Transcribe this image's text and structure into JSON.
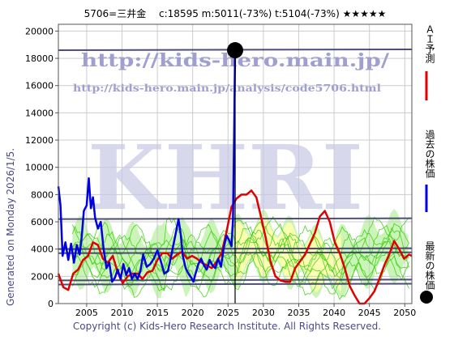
{
  "header": {
    "title": "5706=三井金　 c:18595  m:5011(-73%)  t:5104(-73%)  ★★★★★"
  },
  "sidenote": "Generated on Monday 2026/1/5.",
  "footer": "Copyright (c) Kids-Hero Research Institute. All Rights Reserved.",
  "watermark": {
    "url1": "http://kids-hero.main.jp/",
    "url2": "http://kids-hero.main.jp/analysis/code5706.html",
    "big": "KHRI"
  },
  "legend": [
    {
      "label": "ＡＩ予測",
      "color": "#e00000"
    },
    {
      "label": "過去の株価",
      "color": "#0000e0"
    },
    {
      "label": "最新の株価",
      "color": "#000000"
    }
  ],
  "colors": {
    "ai": "#e00000",
    "past": "#0000e0",
    "bands": "#33cc00",
    "band_fill_green": "#b8f0a0",
    "band_fill_yellow": "#ffffb0",
    "hlines": "#3a3a6a"
  },
  "chart_data": {
    "type": "line",
    "xlim": [
      2001,
      2051
    ],
    "ylim": [
      0,
      20500
    ],
    "x_ticks": [
      2005,
      2010,
      2015,
      2020,
      2025,
      2030,
      2035,
      2040,
      2045,
      2050
    ],
    "y_ticks": [
      0,
      2000,
      4000,
      6000,
      8000,
      10000,
      12000,
      14000,
      16000,
      18000,
      20000
    ],
    "latest": {
      "x": 2026.0,
      "y": 18595
    },
    "horizontal_levels": [
      18600,
      6200,
      4000,
      3700,
      1700,
      1400
    ],
    "series": [
      {
        "role": "past",
        "x": [
          2001.0,
          2001.3,
          2001.6,
          2002.0,
          2002.4,
          2002.8,
          2003.2,
          2003.6,
          2004.0,
          2004.3,
          2004.6,
          2005.0,
          2005.3,
          2005.6,
          2005.9,
          2006.2,
          2006.6,
          2007.0,
          2007.4,
          2007.8,
          2008.2,
          2008.6,
          2009.0,
          2009.4,
          2009.8,
          2010.2,
          2010.6,
          2011.0,
          2011.4,
          2011.8,
          2012.2,
          2012.6,
          2013.0,
          2013.5,
          2014.0,
          2014.5,
          2015.0,
          2015.5,
          2016.0,
          2016.5,
          2017.0,
          2017.5,
          2018.0,
          2018.3,
          2018.6,
          2019.0,
          2019.4,
          2019.8,
          2020.1,
          2020.4,
          2020.8,
          2021.2,
          2021.6,
          2022.0,
          2022.4,
          2022.8,
          2023.2,
          2023.6,
          2024.0,
          2024.4,
          2024.8,
          2025.2,
          2025.5,
          2025.7,
          2025.85,
          2026.0
        ],
        "y": [
          8600,
          7200,
          3500,
          4500,
          3200,
          4400,
          3000,
          4300,
          3600,
          4900,
          6800,
          7200,
          9200,
          7000,
          7800,
          6300,
          5500,
          6000,
          4000,
          2600,
          3000,
          1600,
          1900,
          2500,
          1800,
          2900,
          2100,
          2600,
          1800,
          2200,
          1800,
          2400,
          3600,
          2700,
          2900,
          3300,
          3900,
          3100,
          2200,
          2400,
          3600,
          4900,
          6200,
          5100,
          3500,
          2600,
          2200,
          1900,
          1600,
          2200,
          2900,
          3300,
          2800,
          2500,
          3200,
          2800,
          2600,
          3300,
          2700,
          4100,
          5000,
          4600,
          4200,
          6200,
          12000,
          18595
        ]
      },
      {
        "role": "ai",
        "x": [
          2001.0,
          2001.7,
          2002.4,
          2003.1,
          2003.8,
          2004.5,
          2005.2,
          2005.9,
          2006.6,
          2007.3,
          2008.0,
          2008.7,
          2009.4,
          2010.1,
          2010.8,
          2011.5,
          2012.2,
          2012.9,
          2013.6,
          2014.3,
          2015.0,
          2015.7,
          2016.4,
          2017.1,
          2017.8,
          2018.5,
          2019.2,
          2019.9,
          2020.6,
          2021.3,
          2022.0,
          2022.7,
          2023.4,
          2024.1,
          2024.8,
          2025.5,
          2026.2,
          2026.9,
          2027.6,
          2028.3,
          2029.0,
          2029.6,
          2030.3,
          2031.0,
          2031.7,
          2032.4,
          2033.1,
          2033.8,
          2034.5,
          2035.2,
          2035.9,
          2036.6,
          2037.3,
          2038.0,
          2038.7,
          2039.4,
          2040.1,
          2040.8,
          2041.5,
          2042.2,
          2042.9,
          2043.6,
          2044.3,
          2045.0,
          2045.7,
          2046.4,
          2047.1,
          2047.8,
          2048.5,
          2049.2,
          2049.9,
          2050.6,
          2051.0
        ],
        "y": [
          2200,
          1200,
          1000,
          2200,
          2500,
          3200,
          3500,
          4500,
          4300,
          3300,
          3000,
          3500,
          2300,
          1500,
          2000,
          2200,
          2200,
          1800,
          2300,
          2400,
          3200,
          3700,
          3700,
          3300,
          3600,
          3800,
          3300,
          3500,
          3300,
          3000,
          2800,
          2600,
          3100,
          3700,
          5300,
          7100,
          7700,
          8000,
          8000,
          8300,
          7800,
          6500,
          4900,
          3100,
          2000,
          1700,
          1600,
          1600,
          2600,
          3100,
          3600,
          4400,
          5200,
          6400,
          6800,
          6000,
          4500,
          3700,
          2600,
          1300,
          600,
          0,
          0,
          400,
          900,
          1800,
          2800,
          3600,
          4600,
          4000,
          3300,
          3600,
          3500
        ]
      }
    ]
  }
}
